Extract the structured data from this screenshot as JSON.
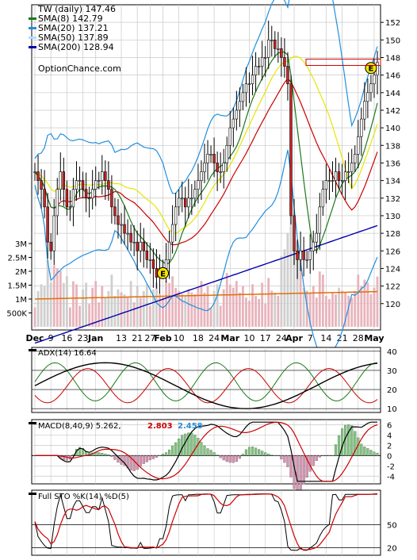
{
  "chart_data": {
    "type": "line",
    "title": "TW (daily) 147.46",
    "watermark": "OptionChance.com",
    "colors": {
      "sma8": "#1a7a1a",
      "sma20": "#2a8cd8",
      "sma50": "#e6e600",
      "sma200": "#0000aa",
      "bb": "#1f8fe0",
      "red": "#cc0000",
      "up_candle": "#ffffff",
      "down_candle": "#cc2222",
      "volume_up": "#e8b4bc",
      "volume_down": "#cfcfcf",
      "volume_avg": "#e07000",
      "grid": "#c8c8c8",
      "earnings_marker": "#f5e400"
    },
    "legend": [
      {
        "label": "SMA(8) 142.79",
        "color": "#1a7a1a"
      },
      {
        "label": "SMA(20) 137.21",
        "color": "#2a8cd8"
      },
      {
        "label": "SMA(50) 137.89",
        "color": "#a8e0ff"
      },
      {
        "label": "SMA(200) 128.94",
        "color": "#0000aa"
      }
    ],
    "price_axis": {
      "ylim": [
        117,
        154
      ],
      "ticks": [
        120,
        122,
        124,
        126,
        128,
        130,
        132,
        134,
        136,
        138,
        140,
        142,
        144,
        146,
        148,
        150,
        152
      ]
    },
    "volume_axis": {
      "ticks": [
        "3M",
        "2.5M",
        "2M",
        "1.5M",
        "1M",
        "500K"
      ],
      "values": [
        3000000,
        2500000,
        2000000,
        1500000,
        1000000,
        500000
      ]
    },
    "x_labels": [
      "Dec",
      "9",
      "16",
      "23",
      "Jan",
      "13",
      "21",
      "27",
      "Feb",
      "10",
      "18",
      "24",
      "Mar",
      "10",
      "17",
      "24",
      "Apr",
      "7",
      "14",
      "21",
      "28",
      "May"
    ],
    "x_label_index": [
      0,
      5,
      10,
      15,
      19,
      27,
      32,
      36,
      40,
      45,
      51,
      56,
      61,
      67,
      72,
      77,
      81,
      86,
      91,
      96,
      101,
      106
    ],
    "earnings_label": "E",
    "earnings_index": [
      40,
      105
    ],
    "close": [
      135,
      134,
      133,
      131,
      127,
      126,
      130,
      133,
      135,
      133,
      131,
      131,
      133,
      134,
      134,
      133,
      132,
      132,
      133,
      134,
      134,
      135,
      134,
      133,
      131,
      130,
      129,
      129,
      128,
      128,
      127,
      127,
      126,
      127,
      126,
      125,
      125,
      124,
      123,
      124,
      124,
      125,
      127,
      129,
      131,
      132,
      132,
      131,
      132,
      132,
      133,
      134,
      135,
      136,
      137,
      137,
      136,
      135,
      135,
      136,
      138,
      140,
      141,
      142,
      143,
      144,
      145,
      145,
      146,
      147,
      147,
      148,
      148,
      150,
      150,
      149,
      149,
      148,
      147,
      145,
      130,
      126,
      125,
      126,
      125,
      125,
      126,
      127,
      128,
      131,
      133,
      134,
      134,
      134,
      135,
      134,
      134,
      135,
      135,
      136,
      137,
      139,
      141,
      143,
      144,
      145,
      146,
      147.46
    ],
    "panels": [
      {
        "name": "ADX(14) 16.64",
        "ticks": [
          10,
          20,
          30,
          40
        ],
        "ylim": [
          8,
          42
        ]
      },
      {
        "name": "MACD(8,40,9) 5.262,",
        "values_printed": [
          "2.803",
          "2.458"
        ],
        "value_colors": [
          "#cc0000",
          "#2a8cd8"
        ],
        "ticks": [
          6,
          4,
          2,
          0,
          -2,
          -4
        ],
        "ylim": [
          -5.5,
          7
        ]
      },
      {
        "name": "Full STO %K(14) %D(5)",
        "ticks": [
          50,
          20
        ],
        "ylim": [
          10,
          95
        ]
      }
    ]
  }
}
